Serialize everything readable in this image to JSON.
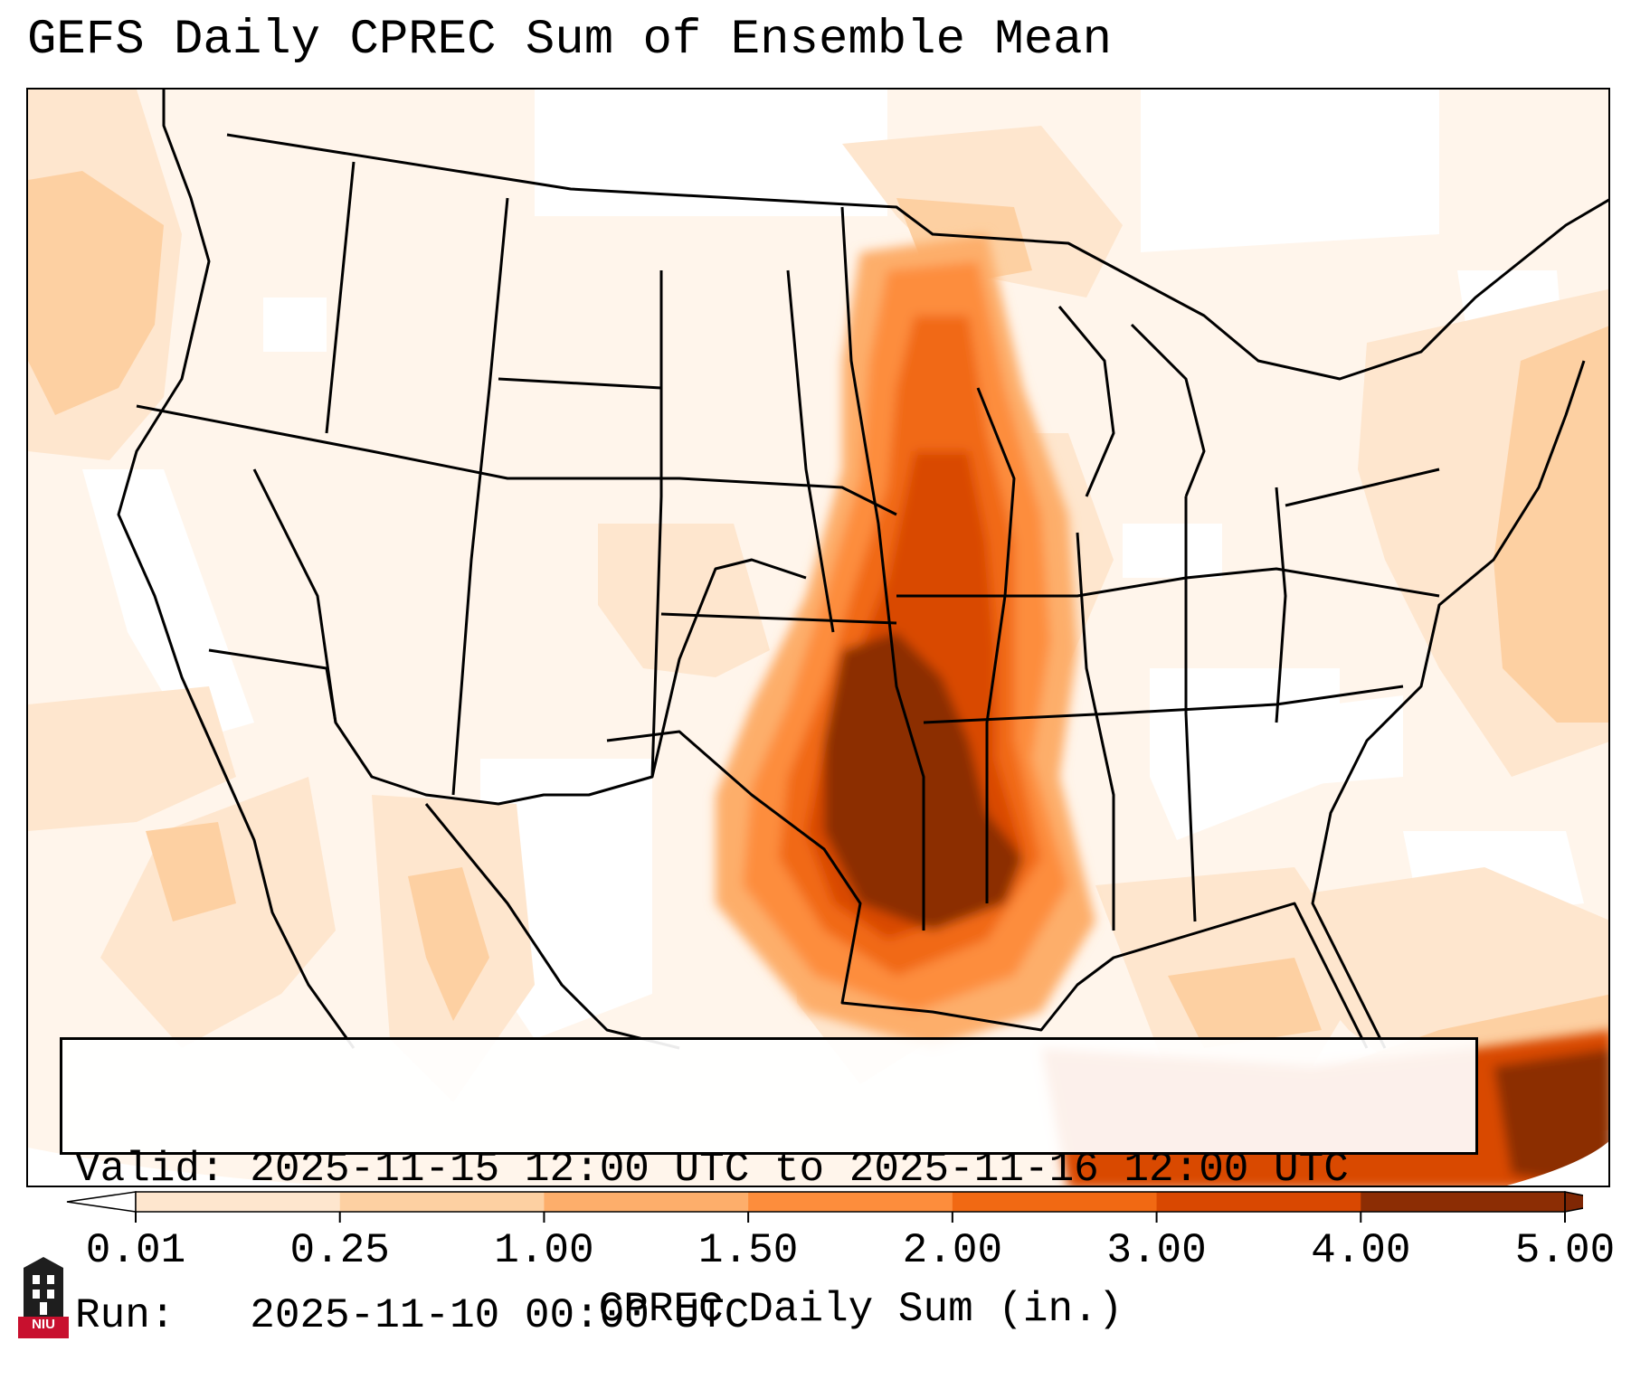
{
  "title": "GEFS Daily CPREC Sum of Ensemble Mean",
  "info": {
    "valid_line": "Valid: 2025-11-15 12:00 UTC to 2025-11-16 12:00 UTC",
    "run_line": "Run:   2025-11-10 00:00 UTC"
  },
  "colorbar": {
    "label": "CPREC Daily Sum (in.)",
    "ticks": [
      "0.01",
      "0.25",
      "1.00",
      "1.50",
      "2.00",
      "3.00",
      "4.00",
      "5.00"
    ],
    "colors": [
      "#fff5eb",
      "#fee6ce",
      "#fdd0a2",
      "#fdae6b",
      "#fd8d3c",
      "#f16913",
      "#d94801",
      "#8c2d04"
    ],
    "under_color": "#ffffff",
    "over_color": "#7f2704"
  },
  "logo": {
    "text": "NIU",
    "icon": "university-tower-icon",
    "color": "#c8102e"
  },
  "map": {
    "region": "Continental United States",
    "field": "ensemble mean daily convective precipitation",
    "heaviest_area": "Southern Plains to Lower Mississippi Valley"
  }
}
